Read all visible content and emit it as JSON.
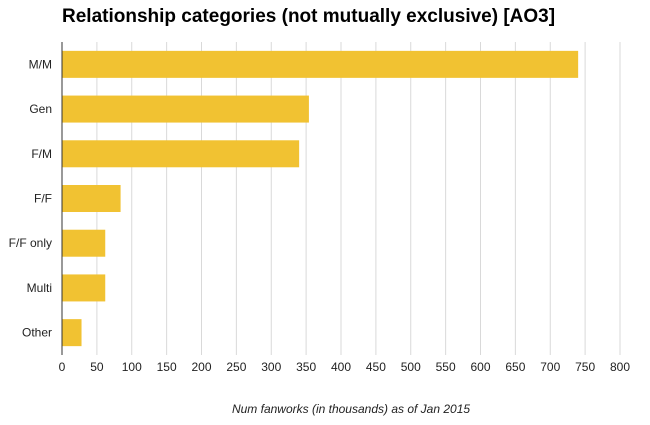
{
  "chart_data": {
    "type": "bar",
    "orientation": "horizontal",
    "title": "Relationship categories (not mutually exclusive) [AO3]",
    "xlabel": "Num fanworks (in thousands) as of Jan 2015",
    "ylabel": "",
    "categories": [
      "M/M",
      "Gen",
      "F/M",
      "F/F",
      "F/F only",
      "Multi",
      "Other"
    ],
    "values": [
      740,
      354,
      340,
      84,
      62,
      62,
      28
    ],
    "xlim": [
      0,
      800
    ],
    "xticks": [
      0,
      50,
      100,
      150,
      200,
      250,
      300,
      350,
      400,
      450,
      500,
      550,
      600,
      650,
      700,
      750,
      800
    ],
    "grid": "vertical",
    "legend": "none",
    "bar_color": "#f1c232",
    "grid_color": "#d9d9d9",
    "axis_color": "#333333"
  }
}
